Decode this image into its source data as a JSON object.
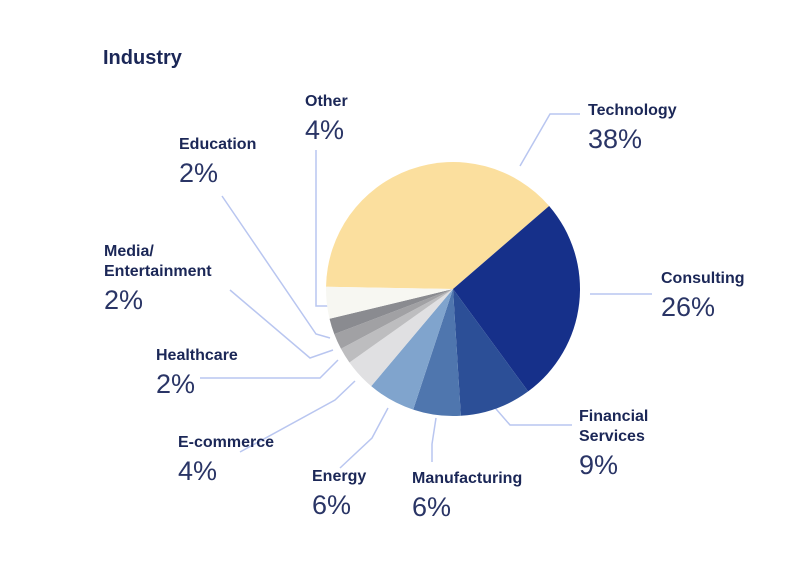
{
  "chart_data": {
    "type": "pie",
    "title": "Industry",
    "slices": [
      {
        "label": "Technology",
        "value": 38,
        "display": "38%",
        "color": "#fbdf9e"
      },
      {
        "label": "Consulting",
        "value": 26,
        "display": "26%",
        "color": "#16308a"
      },
      {
        "label": "Financial Services",
        "label_lines": [
          "Financial",
          "Services"
        ],
        "value": 9,
        "display": "9%",
        "color": "#2c4f97"
      },
      {
        "label": "Manufacturing",
        "value": 6,
        "display": "6%",
        "color": "#4f76ae"
      },
      {
        "label": "Energy",
        "value": 6,
        "display": "6%",
        "color": "#80a4cd"
      },
      {
        "label": "E-commerce",
        "value": 4,
        "display": "4%",
        "color": "#e0e0e2"
      },
      {
        "label": "Healthcare",
        "value": 2,
        "display": "2%",
        "color": "#bdbdbf"
      },
      {
        "label": "Media/ Entertainment",
        "label_lines": [
          "Media/",
          "Entertainment"
        ],
        "value": 2,
        "display": "2%",
        "color": "#a1a1a4"
      },
      {
        "label": "Education",
        "value": 2,
        "display": "2%",
        "color": "#8a8b90"
      },
      {
        "label": "Other",
        "value": 4,
        "display": "4%",
        "color": "#f7f7f2"
      }
    ],
    "leader_line_color": "#b9c6f0"
  }
}
